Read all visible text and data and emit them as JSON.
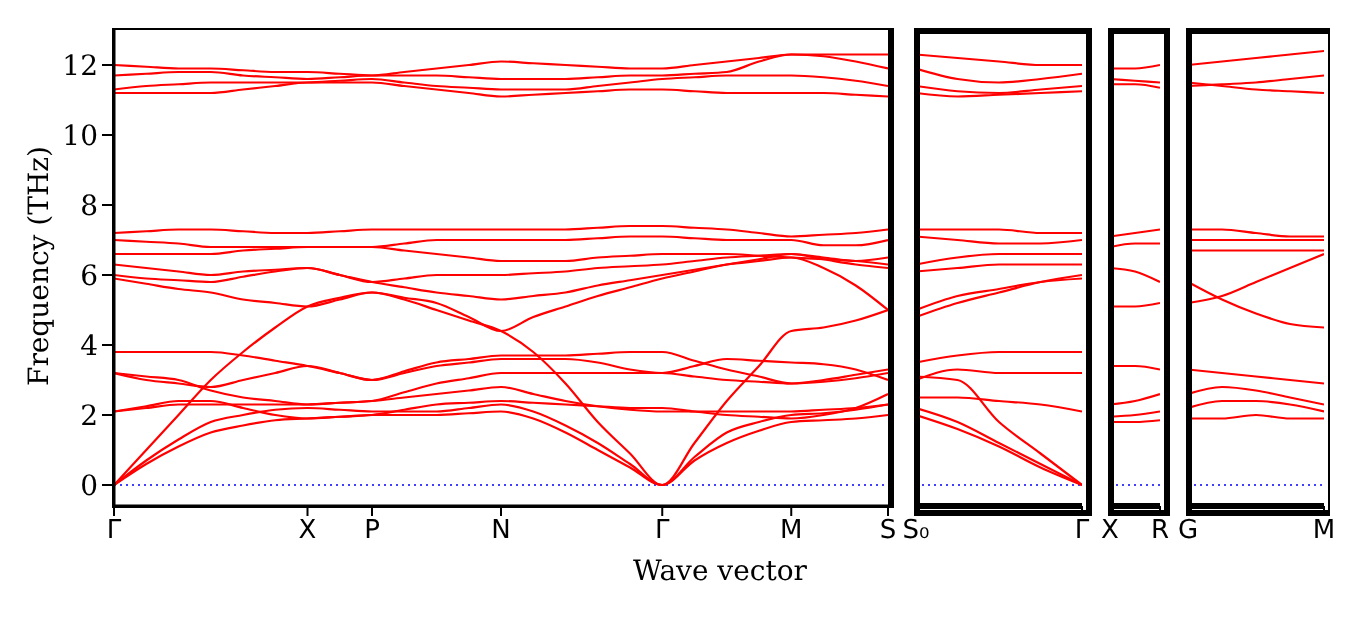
{
  "chart_data": [
    {
      "type": "line",
      "xlabel": "Wave vector",
      "ylabel": "Frequency (THz)",
      "categories": [
        "Γ",
        null,
        null,
        null,
        null,
        null,
        "X",
        null,
        "P",
        null,
        null,
        null,
        "N",
        null,
        null,
        null,
        null,
        "Γ",
        null,
        null,
        null,
        "M",
        null,
        null,
        "S"
      ],
      "ylim": [
        -0.6,
        13
      ],
      "yticks": [
        0,
        2,
        4,
        6,
        8,
        10,
        12
      ],
      "ref_lines": [
        {
          "axis": "y",
          "value": 0,
          "color": "#0000ff",
          "line_style": "dotted"
        }
      ],
      "series": [
        {
          "color": "#ff0000",
          "values": [
            0,
            0.6,
            1.1,
            1.5,
            1.7,
            1.85,
            1.9,
            1.95,
            2.0,
            2.0,
            2.0,
            2.05,
            2.1,
            1.9,
            1.5,
            1.0,
            0.5,
            0,
            0.7,
            1.2,
            1.55,
            1.8,
            1.85,
            1.9,
            2.0
          ]
        },
        {
          "color": "#ff0000",
          "values": [
            0,
            0.7,
            1.3,
            1.8,
            2.0,
            2.15,
            2.2,
            2.15,
            2.1,
            2.1,
            2.1,
            2.2,
            2.3,
            2.1,
            1.7,
            1.2,
            0.6,
            0,
            0.8,
            1.5,
            1.8,
            2.0,
            2.05,
            2.15,
            2.3
          ]
        },
        {
          "color": "#ff0000",
          "values": [
            0,
            1.0,
            2.0,
            3.0,
            3.8,
            4.5,
            5.1,
            5.35,
            5.5,
            5.3,
            5.0,
            4.7,
            4.4,
            3.8,
            2.9,
            1.8,
            0.9,
            0,
            1.2,
            2.4,
            3.4,
            4.4,
            4.5,
            4.7,
            5.0
          ]
        },
        {
          "color": "#ff0000",
          "values": [
            2.1,
            2.2,
            2.3,
            2.3,
            2.3,
            2.3,
            2.3,
            2.35,
            2.4,
            2.5,
            2.6,
            2.7,
            2.8,
            2.6,
            2.4,
            2.25,
            2.15,
            2.1,
            2.1,
            2.1,
            2.1,
            2.1,
            2.15,
            2.2,
            2.3
          ]
        },
        {
          "color": "#ff0000",
          "values": [
            2.1,
            2.25,
            2.4,
            2.4,
            2.2,
            2.0,
            1.9,
            1.95,
            2.0,
            2.15,
            2.3,
            2.35,
            2.4,
            2.35,
            2.3,
            2.25,
            2.2,
            2.2,
            2.1,
            2.0,
            1.95,
            1.9,
            2.0,
            2.2,
            2.6
          ]
        },
        {
          "color": "#ff0000",
          "values": [
            3.2,
            3.1,
            3.0,
            2.7,
            2.5,
            2.4,
            2.3,
            2.35,
            2.4,
            2.65,
            2.9,
            3.05,
            3.2,
            3.2,
            3.2,
            3.2,
            3.2,
            3.2,
            3.1,
            3.0,
            2.95,
            2.9,
            2.95,
            3.05,
            3.2
          ]
        },
        {
          "color": "#ff0000",
          "values": [
            3.2,
            3.0,
            2.9,
            2.8,
            3.0,
            3.2,
            3.4,
            3.2,
            3.0,
            3.2,
            3.4,
            3.5,
            3.6,
            3.6,
            3.6,
            3.5,
            3.3,
            3.2,
            3.4,
            3.6,
            3.55,
            3.5,
            3.45,
            3.3,
            3.0
          ]
        },
        {
          "color": "#ff0000",
          "values": [
            3.8,
            3.8,
            3.8,
            3.8,
            3.7,
            3.55,
            3.4,
            3.2,
            3.0,
            3.25,
            3.5,
            3.6,
            3.7,
            3.7,
            3.7,
            3.75,
            3.8,
            3.8,
            3.55,
            3.3,
            3.1,
            2.9,
            3.0,
            3.15,
            3.3
          ]
        },
        {
          "color": "#ff0000",
          "values": [
            5.9,
            5.75,
            5.6,
            5.5,
            5.3,
            5.2,
            5.1,
            5.3,
            5.5,
            5.35,
            5.2,
            4.8,
            4.4,
            4.8,
            5.1,
            5.4,
            5.65,
            5.9,
            6.1,
            6.3,
            6.4,
            6.5,
            6.2,
            5.7,
            5.0
          ]
        },
        {
          "color": "#ff0000",
          "values": [
            6.0,
            5.9,
            5.85,
            5.8,
            5.95,
            6.1,
            6.2,
            6.0,
            5.8,
            5.65,
            5.5,
            5.4,
            5.3,
            5.4,
            5.5,
            5.7,
            5.85,
            6.0,
            6.15,
            6.3,
            6.45,
            6.6,
            6.45,
            6.3,
            6.2
          ]
        },
        {
          "color": "#ff0000",
          "values": [
            6.3,
            6.2,
            6.1,
            6.0,
            6.1,
            6.15,
            6.2,
            6.0,
            5.8,
            5.9,
            6.0,
            6.0,
            6.0,
            6.05,
            6.1,
            6.2,
            6.25,
            6.3,
            6.4,
            6.5,
            6.55,
            6.6,
            6.5,
            6.4,
            6.5
          ]
        },
        {
          "color": "#ff0000",
          "values": [
            6.6,
            6.6,
            6.6,
            6.6,
            6.7,
            6.75,
            6.8,
            6.8,
            6.8,
            6.7,
            6.6,
            6.5,
            6.4,
            6.4,
            6.4,
            6.5,
            6.55,
            6.6,
            6.6,
            6.6,
            6.55,
            6.5,
            6.45,
            6.4,
            6.3
          ]
        },
        {
          "color": "#ff0000",
          "values": [
            7.0,
            6.95,
            6.9,
            6.8,
            6.8,
            6.8,
            6.8,
            6.8,
            6.8,
            6.9,
            7.0,
            7.0,
            7.0,
            7.0,
            7.0,
            7.05,
            7.1,
            7.1,
            7.05,
            7.0,
            7.0,
            7.0,
            6.85,
            6.85,
            7.0
          ]
        },
        {
          "color": "#ff0000",
          "values": [
            7.2,
            7.25,
            7.3,
            7.3,
            7.25,
            7.2,
            7.2,
            7.25,
            7.3,
            7.3,
            7.3,
            7.3,
            7.3,
            7.3,
            7.3,
            7.35,
            7.4,
            7.4,
            7.35,
            7.3,
            7.2,
            7.1,
            7.15,
            7.2,
            7.3
          ]
        },
        {
          "color": "#ff0000",
          "values": [
            11.2,
            11.2,
            11.2,
            11.2,
            11.3,
            11.4,
            11.5,
            11.5,
            11.5,
            11.4,
            11.3,
            11.2,
            11.1,
            11.15,
            11.2,
            11.25,
            11.3,
            11.3,
            11.25,
            11.2,
            11.2,
            11.2,
            11.2,
            11.15,
            11.1
          ]
        },
        {
          "color": "#ff0000",
          "values": [
            11.3,
            11.4,
            11.45,
            11.5,
            11.5,
            11.5,
            11.5,
            11.55,
            11.6,
            11.5,
            11.4,
            11.35,
            11.3,
            11.3,
            11.3,
            11.4,
            11.5,
            11.6,
            11.65,
            11.7,
            11.7,
            11.7,
            11.65,
            11.55,
            11.4
          ]
        },
        {
          "color": "#ff0000",
          "values": [
            11.7,
            11.75,
            11.8,
            11.8,
            11.7,
            11.65,
            11.6,
            11.65,
            11.7,
            11.7,
            11.7,
            11.65,
            11.6,
            11.6,
            11.6,
            11.65,
            11.7,
            11.7,
            11.75,
            11.8,
            12.1,
            12.3,
            12.25,
            12.1,
            11.9
          ]
        },
        {
          "color": "#ff0000",
          "values": [
            12.0,
            11.95,
            11.9,
            11.9,
            11.85,
            11.8,
            11.8,
            11.75,
            11.7,
            11.8,
            11.9,
            12.0,
            12.1,
            12.05,
            12.0,
            11.95,
            11.9,
            11.9,
            12.0,
            12.1,
            12.2,
            12.3,
            12.3,
            12.3,
            12.3
          ]
        }
      ]
    },
    {
      "type": "line",
      "tick_labels": "x",
      "categories": [
        "S₀",
        null,
        null,
        null,
        "Γ"
      ],
      "ylim": [
        -0.6,
        13
      ],
      "yticks": [
        0,
        2,
        4,
        6,
        8,
        10,
        12
      ],
      "ref_lines": [
        {
          "axis": "y",
          "value": 0,
          "color": "#0000ff",
          "line_style": "dotted"
        }
      ],
      "series": [
        {
          "color": "#ff0000",
          "values": [
            2.0,
            1.6,
            1.1,
            0.5,
            0
          ]
        },
        {
          "color": "#ff0000",
          "values": [
            2.2,
            1.8,
            1.2,
            0.6,
            0
          ]
        },
        {
          "color": "#ff0000",
          "values": [
            3.1,
            3.0,
            1.8,
            0.9,
            0
          ]
        },
        {
          "color": "#ff0000",
          "values": [
            2.5,
            2.5,
            2.4,
            2.3,
            2.1
          ]
        },
        {
          "color": "#ff0000",
          "values": [
            3.0,
            3.3,
            3.2,
            3.2,
            3.2
          ]
        },
        {
          "color": "#ff0000",
          "values": [
            3.5,
            3.7,
            3.8,
            3.8,
            3.8
          ]
        },
        {
          "color": "#ff0000",
          "values": [
            5.0,
            5.4,
            5.6,
            5.8,
            5.9
          ]
        },
        {
          "color": "#ff0000",
          "values": [
            4.8,
            5.2,
            5.5,
            5.8,
            6.0
          ]
        },
        {
          "color": "#ff0000",
          "values": [
            6.1,
            6.2,
            6.3,
            6.3,
            6.3
          ]
        },
        {
          "color": "#ff0000",
          "values": [
            6.3,
            6.5,
            6.6,
            6.6,
            6.6
          ]
        },
        {
          "color": "#ff0000",
          "values": [
            7.1,
            7.0,
            6.9,
            6.9,
            7.0
          ]
        },
        {
          "color": "#ff0000",
          "values": [
            7.3,
            7.3,
            7.3,
            7.2,
            7.2
          ]
        },
        {
          "color": "#ff0000",
          "values": [
            11.2,
            11.1,
            11.15,
            11.2,
            11.25
          ]
        },
        {
          "color": "#ff0000",
          "values": [
            11.4,
            11.25,
            11.2,
            11.3,
            11.4
          ]
        },
        {
          "color": "#ff0000",
          "values": [
            11.9,
            11.6,
            11.5,
            11.6,
            11.75
          ]
        },
        {
          "color": "#ff0000",
          "values": [
            12.3,
            12.2,
            12.1,
            12.0,
            12.0
          ]
        }
      ]
    },
    {
      "type": "line",
      "tick_labels": "x",
      "categories": [
        "X",
        null,
        "R"
      ],
      "ylim": [
        -0.6,
        13
      ],
      "yticks": [
        0,
        2,
        4,
        6,
        8,
        10,
        12
      ],
      "ref_lines": [
        {
          "axis": "y",
          "value": 0,
          "color": "#0000ff",
          "line_style": "dotted"
        }
      ],
      "series": [
        {
          "color": "#ff0000",
          "values": [
            1.8,
            1.8,
            1.85
          ]
        },
        {
          "color": "#ff0000",
          "values": [
            1.95,
            2.0,
            2.1
          ]
        },
        {
          "color": "#ff0000",
          "values": [
            2.3,
            2.4,
            2.6
          ]
        },
        {
          "color": "#ff0000",
          "values": [
            3.4,
            3.4,
            3.3
          ]
        },
        {
          "color": "#ff0000",
          "values": [
            5.1,
            5.1,
            5.2
          ]
        },
        {
          "color": "#ff0000",
          "values": [
            6.2,
            6.1,
            5.8
          ]
        },
        {
          "color": "#ff0000",
          "values": [
            6.8,
            6.9,
            6.9
          ]
        },
        {
          "color": "#ff0000",
          "values": [
            7.1,
            7.2,
            7.3
          ]
        },
        {
          "color": "#ff0000",
          "values": [
            11.45,
            11.45,
            11.35
          ]
        },
        {
          "color": "#ff0000",
          "values": [
            11.6,
            11.55,
            11.5
          ]
        },
        {
          "color": "#ff0000",
          "values": [
            11.9,
            11.9,
            12.0
          ]
        }
      ]
    },
    {
      "type": "line",
      "tick_labels": "x",
      "categories": [
        "G",
        null,
        null,
        null,
        "M"
      ],
      "ylim": [
        -0.6,
        13
      ],
      "yticks": [
        0,
        2,
        4,
        6,
        8,
        10,
        12
      ],
      "ref_lines": [
        {
          "axis": "y",
          "value": 0,
          "color": "#0000ff",
          "line_style": "dotted"
        }
      ],
      "series": [
        {
          "color": "#ff0000",
          "values": [
            1.9,
            1.9,
            2.0,
            1.9,
            1.9
          ]
        },
        {
          "color": "#ff0000",
          "values": [
            2.2,
            2.4,
            2.4,
            2.3,
            2.1
          ]
        },
        {
          "color": "#ff0000",
          "values": [
            2.6,
            2.8,
            2.7,
            2.5,
            2.3
          ]
        },
        {
          "color": "#ff0000",
          "values": [
            3.3,
            3.2,
            3.1,
            3.0,
            2.9
          ]
        },
        {
          "color": "#ff0000",
          "values": [
            5.8,
            5.3,
            4.9,
            4.6,
            4.5
          ]
        },
        {
          "color": "#ff0000",
          "values": [
            5.2,
            5.4,
            5.8,
            6.2,
            6.6
          ]
        },
        {
          "color": "#ff0000",
          "values": [
            6.7,
            6.7,
            6.7,
            6.7,
            6.7
          ]
        },
        {
          "color": "#ff0000",
          "values": [
            7.0,
            7.0,
            7.0,
            7.0,
            7.0
          ]
        },
        {
          "color": "#ff0000",
          "values": [
            7.3,
            7.3,
            7.2,
            7.1,
            7.1
          ]
        },
        {
          "color": "#ff0000",
          "values": [
            11.5,
            11.4,
            11.3,
            11.25,
            11.2
          ]
        },
        {
          "color": "#ff0000",
          "values": [
            11.4,
            11.45,
            11.5,
            11.6,
            11.7
          ]
        },
        {
          "color": "#ff0000",
          "values": [
            12.0,
            12.1,
            12.2,
            12.3,
            12.4
          ]
        }
      ]
    }
  ]
}
